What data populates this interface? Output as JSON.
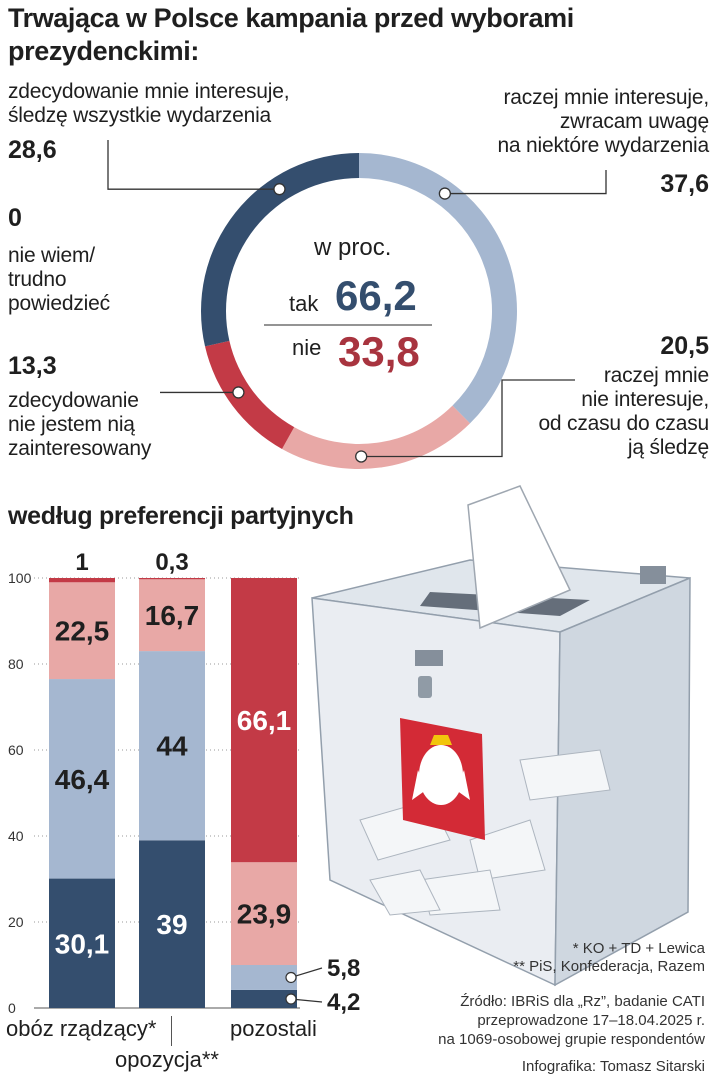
{
  "title": "Trwająca w Polsce kampania przed wyborami prezydenckimi:",
  "colors": {
    "navy": "#344e6e",
    "lightblue": "#a5b7d0",
    "red": "#c33a46",
    "pink": "#e8a8a6"
  },
  "donut": {
    "center_label": "w proc.",
    "tak_label": "tak",
    "tak_value": "66,2",
    "nie_label": "nie",
    "nie_value": "33,8",
    "segments": [
      {
        "value_label": "28,6",
        "text_line1": "zdecydowanie mnie interesuje,",
        "text_line2": "śledzę wszystkie wydarzenia"
      },
      {
        "value_label": "37,6",
        "text_line1": "raczej mnie interesuje,",
        "text_line2": "zwracam uwagę",
        "text_line3": "na niektóre wydarzenia"
      },
      {
        "value_label": "20,5",
        "text_line1": "raczej mnie",
        "text_line2": "nie interesuje,",
        "text_line3": "od czasu do czasu",
        "text_line4": "ją śledzę"
      },
      {
        "value_label": "13,3",
        "text_line1": "zdecydowanie",
        "text_line2": "nie jestem nią",
        "text_line3": "zainteresowany"
      },
      {
        "value_label": "0",
        "text_line1": "nie wiem/",
        "text_line2": "trudno",
        "text_line3": "powiedzieć"
      }
    ]
  },
  "subtitle": "według preferencji partyjnych",
  "footnotes": {
    "note1": "* KO + TD + Lewica",
    "note2": "** PiS, Konfederacja, Razem",
    "source1": "Źródło: IBRiS dla „Rz”, badanie CATI",
    "source2": "przeprowadzone 17–18.04.2025 r.",
    "source3": "na 1069-osobowej grupie respondentów",
    "credit": "Infografika: Tomasz Sitarski"
  },
  "chart_data": [
    {
      "type": "pie",
      "categories": [
        "zdecydowanie mnie interesuje, śledzę wszystkie wydarzenia",
        "raczej mnie interesuje, zwracam uwagę na niektóre wydarzenia",
        "raczej mnie nie interesuje, od czasu do czasu ją śledzę",
        "zdecydowanie nie jestem nią zainteresowany",
        "nie wiem/ trudno powiedzieć"
      ],
      "values": [
        28.6,
        37.6,
        20.5,
        13.3,
        0
      ],
      "unit": "w proc."
    },
    {
      "type": "bar",
      "stacked": true,
      "categories": [
        "obóz rządzący*",
        "opozycja**",
        "pozostali"
      ],
      "series": [
        {
          "values": [
            30.1,
            39,
            4.2
          ]
        },
        {
          "values": [
            46.4,
            44,
            5.8
          ]
        },
        {
          "values": [
            22.5,
            16.7,
            23.9
          ]
        },
        {
          "values": [
            1,
            0.3,
            66.1
          ]
        }
      ],
      "ylim": [
        0,
        100
      ],
      "yticks": [
        "0",
        "20",
        "40",
        "60",
        "80",
        "100"
      ]
    }
  ]
}
